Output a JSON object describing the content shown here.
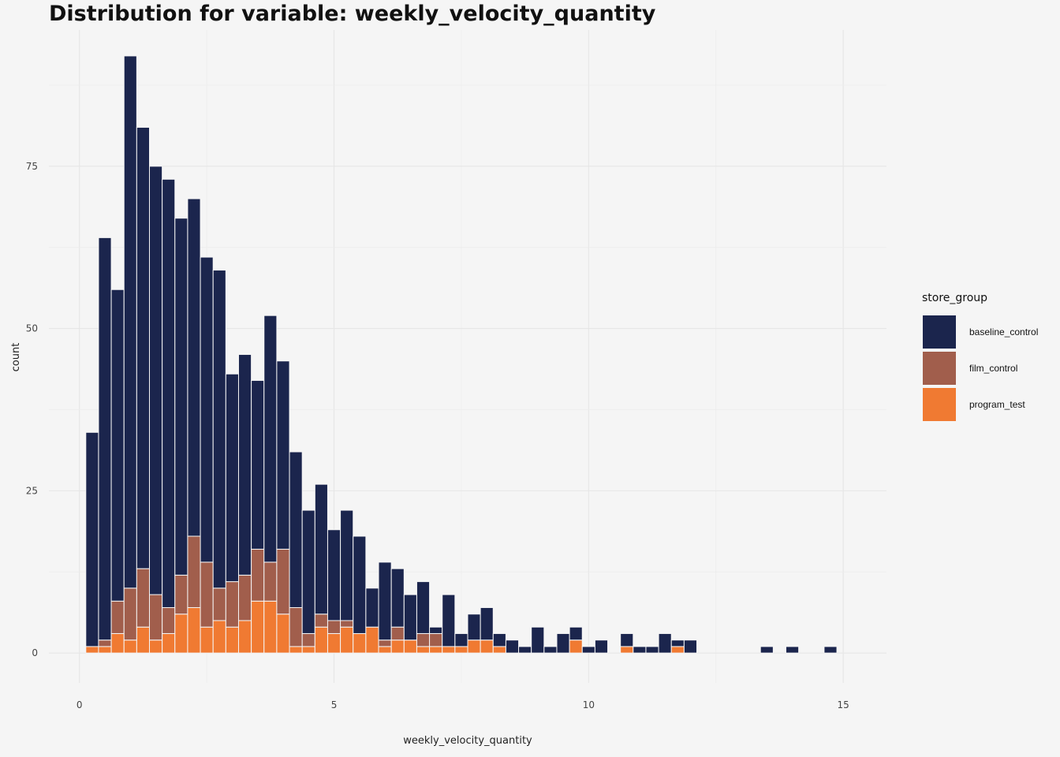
{
  "chart_data": {
    "type": "bar",
    "stacked": true,
    "title": "Distribution for variable: weekly_velocity_quantity",
    "xlabel": "weekly_velocity_quantity",
    "ylabel": "count",
    "xlim": [
      -0.6,
      15.85
    ],
    "ylim": [
      -4.6,
      96
    ],
    "x_ticks": [
      0,
      5,
      10,
      15
    ],
    "y_ticks": [
      0,
      25,
      50,
      75
    ],
    "grid": true,
    "legend_position": "right",
    "legend_title": "store_group",
    "bin_width": 0.25,
    "x": [
      0.25,
      0.5,
      0.75,
      1.0,
      1.25,
      1.5,
      1.75,
      2.0,
      2.25,
      2.5,
      2.75,
      3.0,
      3.25,
      3.5,
      3.75,
      4.0,
      4.25,
      4.5,
      4.75,
      5.0,
      5.25,
      5.5,
      5.75,
      6.0,
      6.25,
      6.5,
      6.75,
      7.0,
      7.25,
      7.5,
      7.75,
      8.0,
      8.25,
      8.5,
      8.75,
      9.0,
      9.25,
      9.5,
      9.75,
      10.0,
      10.25,
      10.5,
      10.75,
      11.0,
      11.25,
      11.5,
      11.75,
      12.0,
      12.25,
      12.5,
      12.75,
      13.0,
      13.25,
      13.5,
      13.75,
      14.0,
      14.25,
      14.5,
      14.75,
      15.0
    ],
    "series": [
      {
        "name": "program_test",
        "color": "#f07a32",
        "values": [
          1,
          1,
          3,
          2,
          4,
          2,
          3,
          6,
          7,
          4,
          5,
          4,
          5,
          8,
          8,
          6,
          1,
          1,
          4,
          3,
          4,
          3,
          4,
          1,
          2,
          2,
          1,
          1,
          1,
          1,
          2,
          2,
          1,
          0,
          0,
          0,
          0,
          0,
          2,
          0,
          0,
          0,
          1,
          0,
          0,
          0,
          1,
          0,
          0,
          0,
          0,
          0,
          0,
          0,
          0,
          0,
          0,
          0,
          0,
          0
        ]
      },
      {
        "name": "film_control",
        "color": "#a15e4c",
        "values": [
          0,
          1,
          5,
          8,
          9,
          7,
          4,
          6,
          11,
          10,
          5,
          7,
          7,
          8,
          6,
          10,
          6,
          2,
          2,
          2,
          1,
          0,
          0,
          1,
          2,
          0,
          2,
          2,
          0,
          0,
          0,
          0,
          0,
          0,
          0,
          0,
          0,
          0,
          0,
          0,
          0,
          0,
          0,
          0,
          0,
          0,
          0,
          0,
          0,
          0,
          0,
          0,
          0,
          0,
          0,
          0,
          0,
          0,
          0,
          0
        ]
      },
      {
        "name": "baseline_control",
        "color": "#1b254d",
        "values": [
          33,
          62,
          48,
          82,
          68,
          66,
          66,
          55,
          52,
          47,
          49,
          32,
          34,
          26,
          38,
          29,
          24,
          19,
          20,
          14,
          17,
          15,
          6,
          12,
          9,
          7,
          8,
          1,
          8,
          2,
          4,
          5,
          2,
          2,
          1,
          4,
          1,
          3,
          2,
          1,
          2,
          0,
          2,
          1,
          1,
          3,
          1,
          2,
          0,
          0,
          0,
          0,
          0,
          1,
          0,
          1,
          0,
          0,
          1,
          0
        ]
      }
    ]
  }
}
